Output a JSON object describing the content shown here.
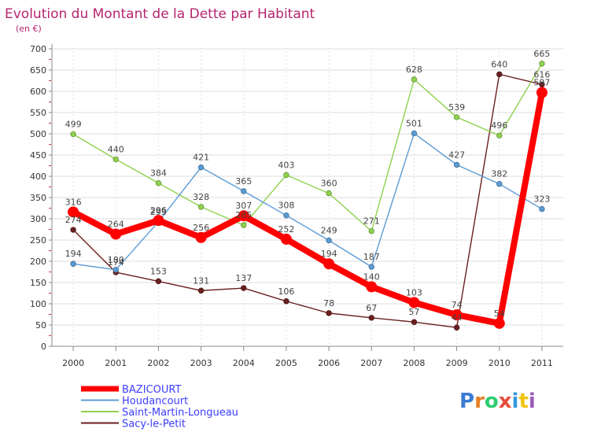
{
  "chart_data": {
    "type": "line",
    "title": "Evolution du Montant de la Dette par Habitant",
    "subtitle": "(en €)",
    "ylim": [
      0,
      700
    ],
    "yticks": [
      0,
      50,
      100,
      150,
      200,
      250,
      300,
      350,
      400,
      450,
      500,
      550,
      600,
      650,
      700
    ],
    "categories": [
      "2000",
      "2001",
      "2002",
      "2003",
      "2004",
      "2005",
      "2006",
      "2007",
      "2008",
      "2009",
      "2010",
      "2011"
    ],
    "grid": true,
    "legend_position": "bottom-left",
    "series": [
      {
        "name": "BAZICOURT",
        "color": "#ff0000",
        "values": [
          316,
          264,
          296,
          256,
          307,
          252,
          194,
          140,
          103,
          74,
          54,
          597
        ]
      },
      {
        "name": "Houdancourt",
        "color": "#5b9bd5",
        "values": [
          194,
          180,
          293,
          421,
          365,
          308,
          249,
          187,
          501,
          427,
          382,
          323
        ]
      },
      {
        "name": "Saint-Martin-Longueau",
        "color": "#8fd14f",
        "values": [
          499,
          440,
          384,
          328,
          285,
          403,
          360,
          271,
          628,
          539,
          496,
          665
        ]
      },
      {
        "name": "Sacy-le-Petit",
        "color": "#6b1f1f",
        "values": [
          274,
          174,
          153,
          131,
          137,
          106,
          78,
          67,
          57,
          44,
          640,
          616
        ]
      }
    ]
  },
  "logo": {
    "text": "Proxiti"
  }
}
